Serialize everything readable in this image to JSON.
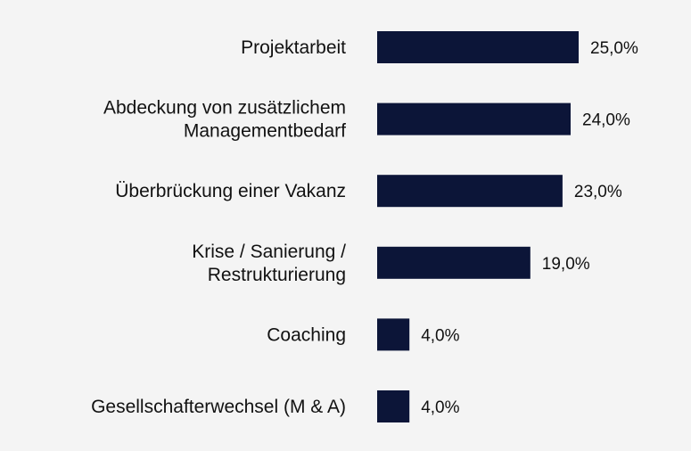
{
  "chart_data": {
    "type": "bar",
    "orientation": "horizontal",
    "categories": [
      [
        "Projektarbeit"
      ],
      [
        "Abdeckung von zusätzlichem",
        "Managementbedarf"
      ],
      [
        "Überbrückung einer Vakanz"
      ],
      [
        "Krise / Sanierung /",
        "Restrukturierung"
      ],
      [
        "Coaching"
      ],
      [
        "Gesellschafterwechsel (M & A)"
      ]
    ],
    "values": [
      25.0,
      24.0,
      23.0,
      19.0,
      4.0,
      4.0
    ],
    "value_labels": [
      "25,0%",
      "24,0%",
      "23,0%",
      "19,0%",
      "4,0%",
      "4,0%"
    ],
    "bar_color": "#0c1538",
    "background_color": "#f4f4f4",
    "xlim": [
      0,
      25
    ],
    "grid": false,
    "legend": "none"
  }
}
